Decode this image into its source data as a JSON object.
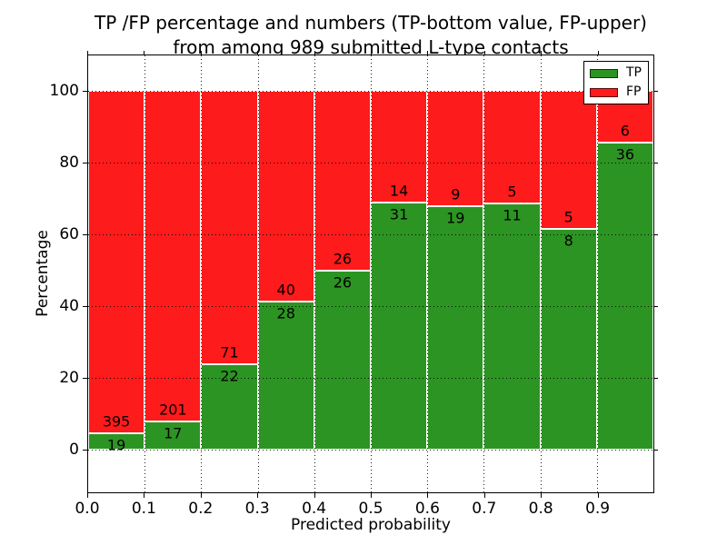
{
  "figure": {
    "background": "#ffffff"
  },
  "chart_data": {
    "type": "bar",
    "stacked": true,
    "normalized_to_percent": true,
    "title_lines": [
      "TP /FP percentage and numbers (TP-bottom value, FP-upper)",
      "from among 989 submitted L-type contacts"
    ],
    "xlabel": "Predicted probability",
    "ylabel": "Percentage",
    "x_tick_labels": [
      "0.0",
      "0.1",
      "0.2",
      "0.3",
      "0.4",
      "0.5",
      "0.6",
      "0.7",
      "0.8",
      "0.9"
    ],
    "y_tick_values": [
      0,
      20,
      40,
      60,
      80,
      100
    ],
    "xlim": [
      0.0,
      1.0
    ],
    "ylim": [
      -12,
      110
    ],
    "bar_width": 0.1,
    "grid": true,
    "categories": [
      "0.0-0.1",
      "0.1-0.2",
      "0.2-0.3",
      "0.3-0.4",
      "0.4-0.5",
      "0.5-0.6",
      "0.6-0.7",
      "0.7-0.8",
      "0.8-0.9",
      "0.9-1.0"
    ],
    "bins": [
      {
        "x_start": 0.0,
        "tp": 19,
        "fp": 395
      },
      {
        "x_start": 0.1,
        "tp": 17,
        "fp": 201
      },
      {
        "x_start": 0.2,
        "tp": 22,
        "fp": 71
      },
      {
        "x_start": 0.3,
        "tp": 28,
        "fp": 40
      },
      {
        "x_start": 0.4,
        "tp": 26,
        "fp": 26
      },
      {
        "x_start": 0.5,
        "tp": 31,
        "fp": 14
      },
      {
        "x_start": 0.6,
        "tp": 19,
        "fp": 9
      },
      {
        "x_start": 0.7,
        "tp": 11,
        "fp": 5
      },
      {
        "x_start": 0.8,
        "tp": 8,
        "fp": 5
      },
      {
        "x_start": 0.9,
        "tp": 36,
        "fp": 6
      }
    ],
    "legend": {
      "position": "upper right",
      "items": [
        {
          "label": "TP",
          "color": "#2c9422"
        },
        {
          "label": "FP",
          "color": "#fe1b1b"
        }
      ]
    },
    "colors": {
      "tp": "#2c9422",
      "fp": "#fe1b1b",
      "bar_edge": "#ffffff",
      "grid": "#000000",
      "axis": "#000000",
      "text": "#000000"
    }
  }
}
